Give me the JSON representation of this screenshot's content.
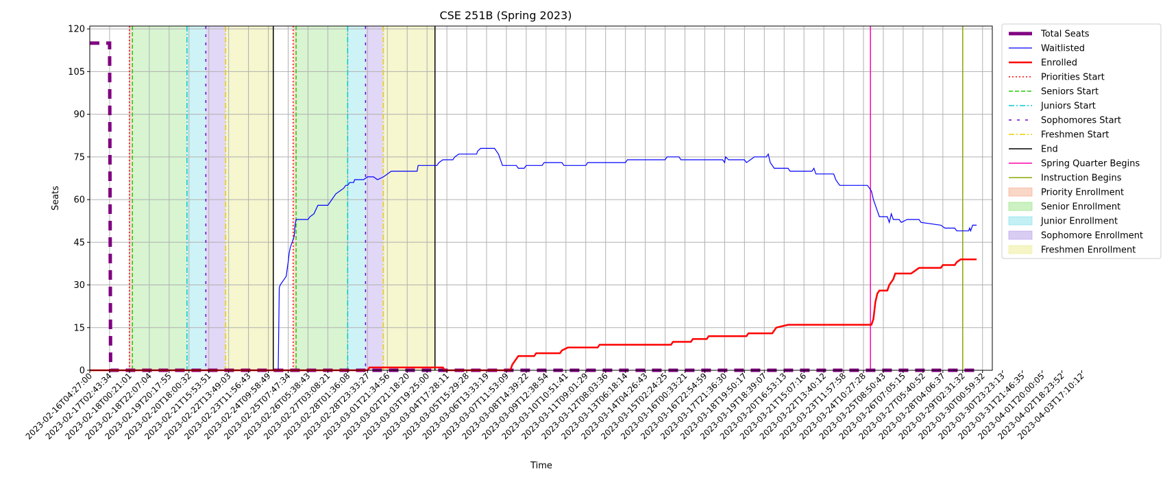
{
  "chart_data": {
    "type": "line",
    "title": "CSE 251B (Spring 2023)",
    "xlabel": "Time",
    "ylabel": "Seats",
    "ylim": [
      0,
      121
    ],
    "yticks": [
      0,
      15,
      30,
      45,
      60,
      75,
      90,
      105,
      120
    ],
    "x_tick_labels": [
      "2023-02-16T04:27:00",
      "2023-02-17T02:43:34",
      "2023-02-18T00:21:01",
      "2023-02-18T22:07:04",
      "2023-02-19T20:17:55",
      "2023-02-20T18:00:32",
      "2023-02-21T15:53:51",
      "2023-02-22T13:49:03",
      "2023-02-23T11:56:43",
      "2023-02-24T09:58:49",
      "2023-02-25T07:47:34",
      "2023-02-26T05:38:43",
      "2023-02-27T03:08:21",
      "2023-02-28T01:36:08",
      "2023-02-28T23:33:27",
      "2023-03-01T21:34:56",
      "2023-03-02T21:18:20",
      "2023-03-03T19:25:00",
      "2023-03-04T17:28:11",
      "2023-03-05T15:29:28",
      "2023-03-06T13:33:19",
      "2023-03-07T11:53:09",
      "2023-03-08T14:39:22",
      "2023-03-09T12:38:54",
      "2023-03-10T10:51:41",
      "2023-03-11T09:01:29",
      "2023-03-12T08:03:36",
      "2023-03-13T06:18:14",
      "2023-03-14T04:26:43",
      "2023-03-15T02:24:25",
      "2023-03-16T00:33:21",
      "2023-03-16T22:54:59",
      "2023-03-17T21:36:30",
      "2023-03-18T19:50:17",
      "2023-03-19T18:39:07",
      "2023-03-20T16:53:13",
      "2023-03-21T15:07:16",
      "2023-03-22T13:40:12",
      "2023-03-23T11:57:58",
      "2023-03-24T10:27:28",
      "2023-03-25T08:50:43",
      "2023-03-26T07:05:15",
      "2023-03-27T05:40:52",
      "2023-03-28T04:06:37",
      "2023-03-29T02:31:32",
      "2023-03-30T00:59:32",
      "2023-03-30T23:23:13",
      "2023-03-31T21:46:35",
      "2023-04-01T20:00:05",
      "2023-04-02T18:23:52",
      "2023-04-03T17:10:12"
    ],
    "x_range_index": [
      -0.05,
      44.7
    ],
    "series": [
      {
        "name": "Total Seats",
        "color": "#800080",
        "style": "dashed-thick",
        "points": [
          [
            0,
            115
          ],
          [
            1.0,
            115
          ],
          [
            1.05,
            0
          ],
          [
            44.7,
            0
          ]
        ]
      },
      {
        "name": "Waitlisted",
        "color": "#0000ff",
        "style": "step",
        "points": [
          [
            0,
            0
          ],
          [
            9.5,
            0
          ],
          [
            9.55,
            29
          ],
          [
            9.6,
            30
          ],
          [
            9.7,
            31
          ],
          [
            9.8,
            32
          ],
          [
            9.9,
            33
          ],
          [
            10.0,
            38
          ],
          [
            10.05,
            41
          ],
          [
            10.1,
            43
          ],
          [
            10.2,
            45
          ],
          [
            10.3,
            47
          ],
          [
            10.35,
            51
          ],
          [
            10.4,
            53
          ],
          [
            11.0,
            53
          ],
          [
            11.1,
            54
          ],
          [
            11.3,
            55
          ],
          [
            11.5,
            58
          ],
          [
            12.0,
            58
          ],
          [
            12.2,
            60
          ],
          [
            12.4,
            62
          ],
          [
            12.6,
            63
          ],
          [
            12.8,
            64
          ],
          [
            12.9,
            65
          ],
          [
            13.0,
            65
          ],
          [
            13.1,
            66
          ],
          [
            13.3,
            66
          ],
          [
            13.35,
            67
          ],
          [
            13.8,
            67
          ],
          [
            14.0,
            68
          ],
          [
            14.3,
            68
          ],
          [
            14.5,
            67
          ],
          [
            14.8,
            68
          ],
          [
            15.2,
            70
          ],
          [
            16.0,
            70
          ],
          [
            16.5,
            70
          ],
          [
            16.55,
            72
          ],
          [
            17.5,
            72
          ],
          [
            17.6,
            73
          ],
          [
            17.8,
            74
          ],
          [
            18.3,
            74
          ],
          [
            18.4,
            75
          ],
          [
            18.6,
            76
          ],
          [
            19.5,
            76
          ],
          [
            19.55,
            77
          ],
          [
            19.7,
            78
          ],
          [
            20.4,
            78
          ],
          [
            20.6,
            76
          ],
          [
            20.8,
            72
          ],
          [
            21.5,
            72
          ],
          [
            21.6,
            71
          ],
          [
            21.9,
            71
          ],
          [
            22.0,
            72
          ],
          [
            22.8,
            72
          ],
          [
            22.9,
            73
          ],
          [
            23.8,
            73
          ],
          [
            23.9,
            72
          ],
          [
            25.0,
            72
          ],
          [
            25.1,
            73
          ],
          [
            27.0,
            73
          ],
          [
            27.1,
            74
          ],
          [
            29.0,
            74
          ],
          [
            29.1,
            75
          ],
          [
            29.7,
            75
          ],
          [
            29.8,
            74
          ],
          [
            31.9,
            74
          ],
          [
            32.0,
            73
          ],
          [
            32.05,
            75
          ],
          [
            32.2,
            74
          ],
          [
            33.0,
            74
          ],
          [
            33.1,
            73
          ],
          [
            33.3,
            74
          ],
          [
            33.5,
            75
          ],
          [
            34.1,
            75
          ],
          [
            34.2,
            76
          ],
          [
            34.3,
            73
          ],
          [
            34.5,
            71
          ],
          [
            35.2,
            71
          ],
          [
            35.3,
            70
          ],
          [
            36.4,
            70
          ],
          [
            36.5,
            71
          ],
          [
            36.6,
            69
          ],
          [
            37.5,
            69
          ],
          [
            37.6,
            67
          ],
          [
            37.8,
            65
          ],
          [
            39.2,
            65
          ],
          [
            39.4,
            63
          ],
          [
            39.5,
            60
          ],
          [
            39.7,
            56
          ],
          [
            39.8,
            54
          ],
          [
            40.2,
            54
          ],
          [
            40.3,
            52
          ],
          [
            40.4,
            55
          ],
          [
            40.5,
            53
          ],
          [
            40.8,
            53
          ],
          [
            40.9,
            52
          ],
          [
            41.2,
            53
          ],
          [
            41.8,
            53
          ],
          [
            41.9,
            52
          ],
          [
            42.9,
            51
          ],
          [
            43.1,
            50
          ],
          [
            43.6,
            50
          ],
          [
            43.7,
            49
          ],
          [
            44.3,
            49
          ],
          [
            44.35,
            50
          ],
          [
            44.4,
            49
          ],
          [
            44.5,
            51
          ],
          [
            44.7,
            51
          ]
        ]
      },
      {
        "name": "Enrolled",
        "color": "#ff0000",
        "style": "step-thick",
        "points": [
          [
            0,
            0
          ],
          [
            14.0,
            0
          ],
          [
            14.1,
            1
          ],
          [
            17.8,
            1
          ],
          [
            17.9,
            0
          ],
          [
            21.2,
            0
          ],
          [
            21.3,
            2
          ],
          [
            21.5,
            4
          ],
          [
            21.6,
            5
          ],
          [
            22.4,
            5
          ],
          [
            22.5,
            6
          ],
          [
            23.7,
            6
          ],
          [
            23.8,
            7
          ],
          [
            24.1,
            8
          ],
          [
            25.6,
            8
          ],
          [
            25.7,
            9
          ],
          [
            29.3,
            9
          ],
          [
            29.4,
            10
          ],
          [
            30.3,
            10
          ],
          [
            30.4,
            11
          ],
          [
            31.1,
            11
          ],
          [
            31.2,
            12
          ],
          [
            33.1,
            12
          ],
          [
            33.2,
            13
          ],
          [
            34.4,
            13
          ],
          [
            34.5,
            14
          ],
          [
            34.6,
            15
          ],
          [
            35.2,
            16
          ],
          [
            39.4,
            16
          ],
          [
            39.5,
            18
          ],
          [
            39.6,
            24
          ],
          [
            39.7,
            27
          ],
          [
            39.8,
            28
          ],
          [
            40.2,
            28
          ],
          [
            40.3,
            30
          ],
          [
            40.5,
            32
          ],
          [
            40.6,
            34
          ],
          [
            41.4,
            34
          ],
          [
            41.6,
            35
          ],
          [
            41.8,
            36
          ],
          [
            42.9,
            36
          ],
          [
            43.0,
            37
          ],
          [
            43.6,
            37
          ],
          [
            43.7,
            38
          ],
          [
            43.9,
            39
          ],
          [
            44.7,
            39
          ]
        ]
      }
    ],
    "vlines": [
      {
        "name": "Priorities Start",
        "color": "#ff0000",
        "style": "dotted",
        "x": [
          2.0,
          10.25
        ]
      },
      {
        "name": "Seniors Start",
        "color": "#22cc00",
        "style": "dashed",
        "x": [
          2.15,
          10.4
        ]
      },
      {
        "name": "Juniors Start",
        "color": "#00cccc",
        "style": "dashdot",
        "x": [
          4.9,
          13.0
        ]
      },
      {
        "name": "Sophomores Start",
        "color": "#6600dd",
        "style": "loosedash",
        "x": [
          5.85,
          13.9
        ]
      },
      {
        "name": "Freshmen Start",
        "color": "#e8d100",
        "style": "dashdot",
        "x": [
          6.85,
          14.8
        ]
      },
      {
        "name": "End",
        "color": "#000000",
        "style": "solid",
        "x": [
          9.25,
          17.4
        ]
      },
      {
        "name": "Spring Quarter Begins",
        "color": "#ff00aa",
        "style": "solid",
        "x": [
          39.35
        ]
      },
      {
        "name": "Instruction Begins",
        "color": "#88aa00",
        "style": "solid",
        "x": [
          44.0
        ]
      }
    ],
    "spans": [
      {
        "name": "Priority Enrollment",
        "color": "#f4a582",
        "alpha": 0.35,
        "ranges": [
          [
            2.0,
            2.15
          ],
          [
            10.25,
            10.4
          ]
        ]
      },
      {
        "name": "Senior Enrollment",
        "color": "#8ee07a",
        "alpha": 0.35,
        "ranges": [
          [
            2.15,
            4.9
          ],
          [
            10.4,
            13.0
          ]
        ]
      },
      {
        "name": "Junior Enrollment",
        "color": "#7fe0e8",
        "alpha": 0.38,
        "ranges": [
          [
            4.9,
            5.85
          ],
          [
            13.0,
            13.9
          ]
        ]
      },
      {
        "name": "Sophomore Enrollment",
        "color": "#b49ae8",
        "alpha": 0.4,
        "ranges": [
          [
            5.85,
            6.85
          ],
          [
            13.9,
            14.8
          ]
        ]
      },
      {
        "name": "Freshmen Enrollment",
        "color": "#eeeea0",
        "alpha": 0.5,
        "ranges": [
          [
            6.85,
            9.25
          ],
          [
            14.8,
            17.4
          ]
        ]
      }
    ],
    "legend_position": "outside-right",
    "grid": true
  }
}
